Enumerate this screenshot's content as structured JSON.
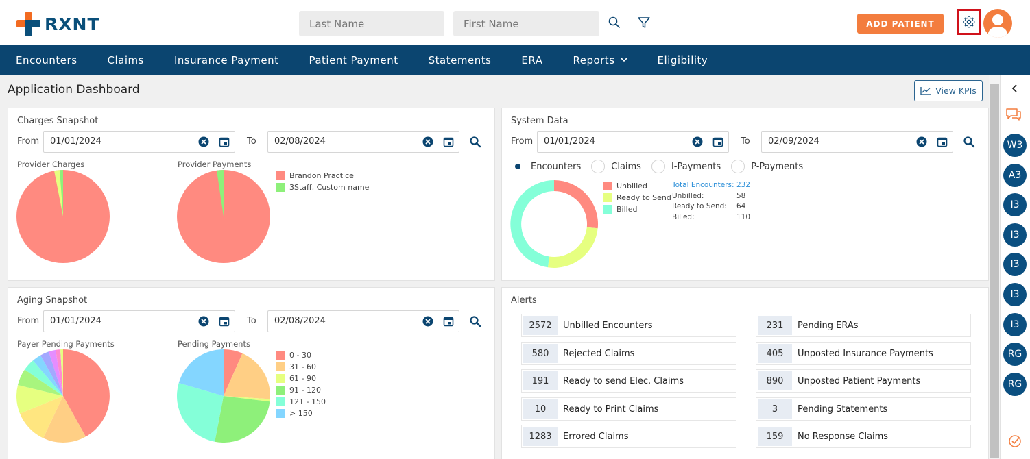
{
  "header": {
    "brand": "RXNT",
    "last_name_placeholder": "Last Name",
    "first_name_placeholder": "First Name",
    "add_patient_label": "ADD PATIENT"
  },
  "nav": {
    "items": [
      "Encounters",
      "Claims",
      "Insurance Payment",
      "Patient Payment",
      "Statements",
      "ERA",
      "Reports",
      "Eligibility"
    ]
  },
  "dashboard": {
    "title": "Application Dashboard",
    "view_kpis_label": "View KPIs"
  },
  "charges_snapshot": {
    "title": "Charges Snapshot",
    "from_label": "From",
    "to_label": "To",
    "from_date": "01/01/2024",
    "to_date": "02/08/2024",
    "provider_charges_label": "Provider Charges",
    "provider_payments_label": "Provider Payments",
    "legend": [
      "Brandon Practice",
      "3Staff, Custom name"
    ]
  },
  "system_data": {
    "title": "System Data",
    "from_label": "From",
    "to_label": "To",
    "from_date": "01/01/2024",
    "to_date": "02/09/2024",
    "radios": [
      "Encounters",
      "Claims",
      "I-Payments",
      "P-Payments"
    ],
    "legend": [
      "Unbilled",
      "Ready to Send",
      "Billed"
    ],
    "stats": [
      {
        "label": "Total Encounters:",
        "value": "232"
      },
      {
        "label": "Unbilled:",
        "value": "58"
      },
      {
        "label": "Ready to Send:",
        "value": "64"
      },
      {
        "label": "Billed:",
        "value": "110"
      }
    ]
  },
  "aging_snapshot": {
    "title": "Aging Snapshot",
    "from_label": "From",
    "to_label": "To",
    "from_date": "01/01/2024",
    "to_date": "02/08/2024",
    "payer_pending_label": "Payer Pending Payments",
    "pending_label": "Pending Payments",
    "legend": [
      "0 - 30",
      "31 - 60",
      "61 - 90",
      "91 - 120",
      "121 - 150",
      "> 150"
    ]
  },
  "alerts": {
    "title": "Alerts",
    "left": [
      {
        "count": "2572",
        "label": "Unbilled Encounters"
      },
      {
        "count": "580",
        "label": "Rejected Claims"
      },
      {
        "count": "191",
        "label": "Ready to send Elec. Claims"
      },
      {
        "count": "10",
        "label": "Ready to Print Claims"
      },
      {
        "count": "1283",
        "label": "Errored Claims"
      }
    ],
    "right": [
      {
        "count": "231",
        "label": "Pending ERAs"
      },
      {
        "count": "405",
        "label": "Unposted Insurance Payments"
      },
      {
        "count": "890",
        "label": "Unposted Patient Payments"
      },
      {
        "count": "3",
        "label": "Pending Statements"
      },
      {
        "count": "159",
        "label": "No Response Claims"
      }
    ]
  },
  "rail": {
    "badges": [
      "W3",
      "A3",
      "I3",
      "I3",
      "I3",
      "I3",
      "I3",
      "RG",
      "RG"
    ]
  },
  "colors": {
    "nav_bg": "#0b4570",
    "accent": "#f37d3e",
    "brand_blue": "#0a4f7a",
    "pie_red": "#ff8a80",
    "pie_green": "#8ef07a",
    "pie_yellow": "#e6ff80",
    "pie_teal": "#84ffd8"
  }
}
